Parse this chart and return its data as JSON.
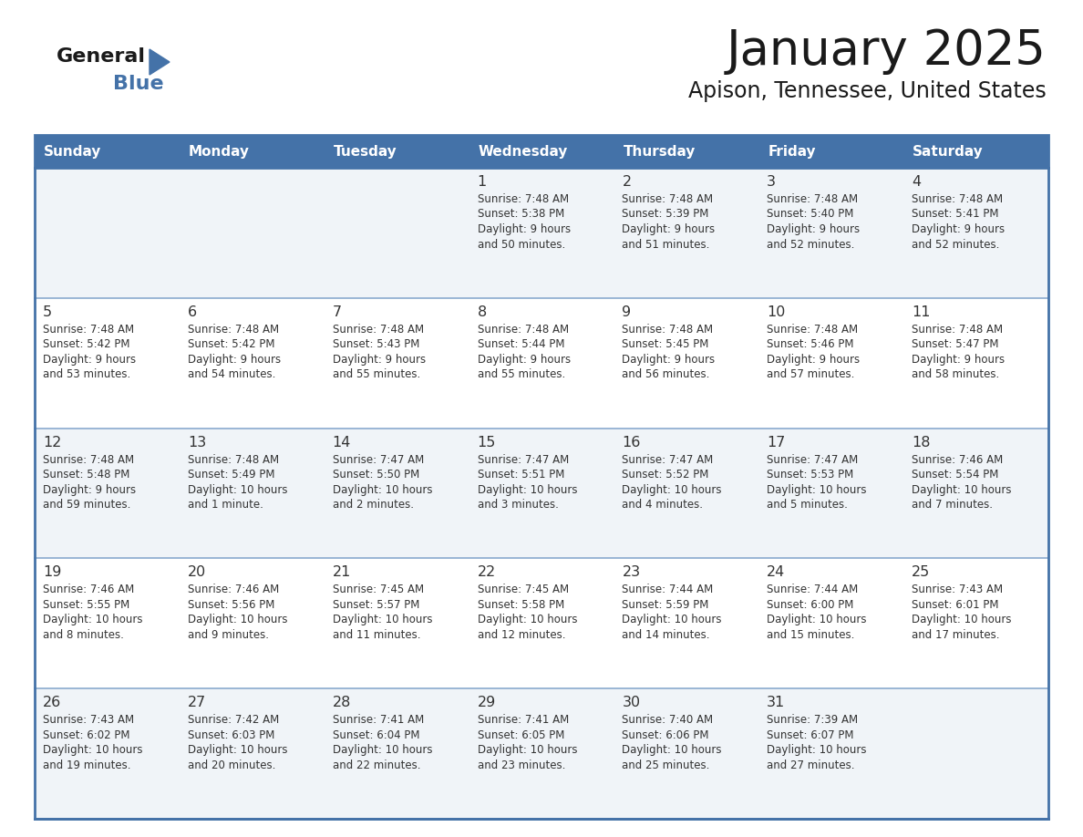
{
  "title": "January 2025",
  "subtitle": "Apison, Tennessee, United States",
  "header_bg": "#4472a8",
  "header_text_color": "#ffffff",
  "cell_bg_light": "#f0f4f8",
  "cell_bg_white": "#ffffff",
  "border_color": "#4472a8",
  "sep_line_color": "#8aaace",
  "text_color": "#333333",
  "days_of_week": [
    "Sunday",
    "Monday",
    "Tuesday",
    "Wednesday",
    "Thursday",
    "Friday",
    "Saturday"
  ],
  "weeks": [
    [
      {
        "day": null,
        "sunrise": null,
        "sunset": null,
        "daylight": null
      },
      {
        "day": null,
        "sunrise": null,
        "sunset": null,
        "daylight": null
      },
      {
        "day": null,
        "sunrise": null,
        "sunset": null,
        "daylight": null
      },
      {
        "day": 1,
        "sunrise": "7:48 AM",
        "sunset": "5:38 PM",
        "daylight": "9 hours\nand 50 minutes."
      },
      {
        "day": 2,
        "sunrise": "7:48 AM",
        "sunset": "5:39 PM",
        "daylight": "9 hours\nand 51 minutes."
      },
      {
        "day": 3,
        "sunrise": "7:48 AM",
        "sunset": "5:40 PM",
        "daylight": "9 hours\nand 52 minutes."
      },
      {
        "day": 4,
        "sunrise": "7:48 AM",
        "sunset": "5:41 PM",
        "daylight": "9 hours\nand 52 minutes."
      }
    ],
    [
      {
        "day": 5,
        "sunrise": "7:48 AM",
        "sunset": "5:42 PM",
        "daylight": "9 hours\nand 53 minutes."
      },
      {
        "day": 6,
        "sunrise": "7:48 AM",
        "sunset": "5:42 PM",
        "daylight": "9 hours\nand 54 minutes."
      },
      {
        "day": 7,
        "sunrise": "7:48 AM",
        "sunset": "5:43 PM",
        "daylight": "9 hours\nand 55 minutes."
      },
      {
        "day": 8,
        "sunrise": "7:48 AM",
        "sunset": "5:44 PM",
        "daylight": "9 hours\nand 55 minutes."
      },
      {
        "day": 9,
        "sunrise": "7:48 AM",
        "sunset": "5:45 PM",
        "daylight": "9 hours\nand 56 minutes."
      },
      {
        "day": 10,
        "sunrise": "7:48 AM",
        "sunset": "5:46 PM",
        "daylight": "9 hours\nand 57 minutes."
      },
      {
        "day": 11,
        "sunrise": "7:48 AM",
        "sunset": "5:47 PM",
        "daylight": "9 hours\nand 58 minutes."
      }
    ],
    [
      {
        "day": 12,
        "sunrise": "7:48 AM",
        "sunset": "5:48 PM",
        "daylight": "9 hours\nand 59 minutes."
      },
      {
        "day": 13,
        "sunrise": "7:48 AM",
        "sunset": "5:49 PM",
        "daylight": "10 hours\nand 1 minute."
      },
      {
        "day": 14,
        "sunrise": "7:47 AM",
        "sunset": "5:50 PM",
        "daylight": "10 hours\nand 2 minutes."
      },
      {
        "day": 15,
        "sunrise": "7:47 AM",
        "sunset": "5:51 PM",
        "daylight": "10 hours\nand 3 minutes."
      },
      {
        "day": 16,
        "sunrise": "7:47 AM",
        "sunset": "5:52 PM",
        "daylight": "10 hours\nand 4 minutes."
      },
      {
        "day": 17,
        "sunrise": "7:47 AM",
        "sunset": "5:53 PM",
        "daylight": "10 hours\nand 5 minutes."
      },
      {
        "day": 18,
        "sunrise": "7:46 AM",
        "sunset": "5:54 PM",
        "daylight": "10 hours\nand 7 minutes."
      }
    ],
    [
      {
        "day": 19,
        "sunrise": "7:46 AM",
        "sunset": "5:55 PM",
        "daylight": "10 hours\nand 8 minutes."
      },
      {
        "day": 20,
        "sunrise": "7:46 AM",
        "sunset": "5:56 PM",
        "daylight": "10 hours\nand 9 minutes."
      },
      {
        "day": 21,
        "sunrise": "7:45 AM",
        "sunset": "5:57 PM",
        "daylight": "10 hours\nand 11 minutes."
      },
      {
        "day": 22,
        "sunrise": "7:45 AM",
        "sunset": "5:58 PM",
        "daylight": "10 hours\nand 12 minutes."
      },
      {
        "day": 23,
        "sunrise": "7:44 AM",
        "sunset": "5:59 PM",
        "daylight": "10 hours\nand 14 minutes."
      },
      {
        "day": 24,
        "sunrise": "7:44 AM",
        "sunset": "6:00 PM",
        "daylight": "10 hours\nand 15 minutes."
      },
      {
        "day": 25,
        "sunrise": "7:43 AM",
        "sunset": "6:01 PM",
        "daylight": "10 hours\nand 17 minutes."
      }
    ],
    [
      {
        "day": 26,
        "sunrise": "7:43 AM",
        "sunset": "6:02 PM",
        "daylight": "10 hours\nand 19 minutes."
      },
      {
        "day": 27,
        "sunrise": "7:42 AM",
        "sunset": "6:03 PM",
        "daylight": "10 hours\nand 20 minutes."
      },
      {
        "day": 28,
        "sunrise": "7:41 AM",
        "sunset": "6:04 PM",
        "daylight": "10 hours\nand 22 minutes."
      },
      {
        "day": 29,
        "sunrise": "7:41 AM",
        "sunset": "6:05 PM",
        "daylight": "10 hours\nand 23 minutes."
      },
      {
        "day": 30,
        "sunrise": "7:40 AM",
        "sunset": "6:06 PM",
        "daylight": "10 hours\nand 25 minutes."
      },
      {
        "day": 31,
        "sunrise": "7:39 AM",
        "sunset": "6:07 PM",
        "daylight": "10 hours\nand 27 minutes."
      },
      {
        "day": null,
        "sunrise": null,
        "sunset": null,
        "daylight": null
      }
    ]
  ],
  "fig_width": 11.88,
  "fig_height": 9.18,
  "dpi": 100
}
